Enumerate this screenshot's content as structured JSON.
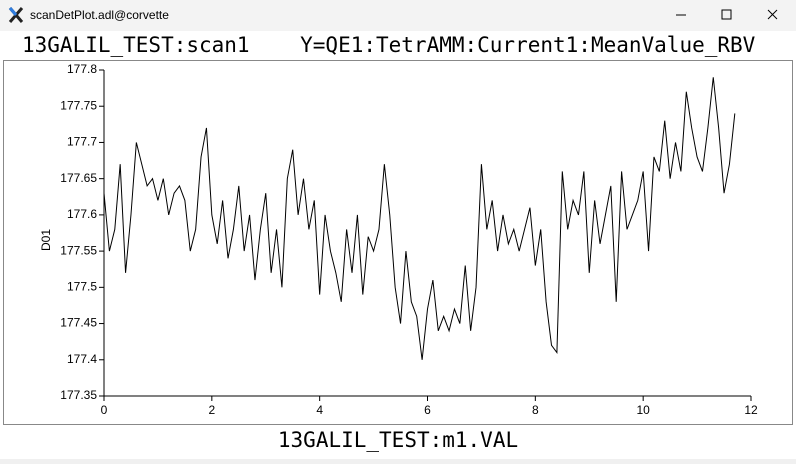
{
  "window_title": "scanDetPlot.adl@corvette",
  "chart_data": {
    "type": "line",
    "title": "13GALIL_TEST:scan1    Y=QE1:TetrAMM:Current1:MeanValue_RBV",
    "x_label": "13GALIL_TEST:m1.VAL",
    "y_label": "D01",
    "xlim": [
      0,
      12
    ],
    "xticks": [
      0,
      2,
      4,
      6,
      8,
      10,
      12
    ],
    "ylim": [
      177.35,
      177.8
    ],
    "yticks": [
      177.35,
      177.4,
      177.45,
      177.5,
      177.55,
      177.6,
      177.65,
      177.7,
      177.75,
      177.8
    ],
    "series": [
      {
        "name": "D01",
        "color": "#000000",
        "x": [
          0,
          0.1,
          0.2,
          0.3,
          0.4,
          0.5,
          0.6,
          0.7,
          0.8,
          0.9,
          1,
          1.1,
          1.2,
          1.3,
          1.4,
          1.5,
          1.6,
          1.7,
          1.8,
          1.9,
          2,
          2.1,
          2.2,
          2.3,
          2.4,
          2.5,
          2.6,
          2.7,
          2.8,
          2.9,
          3,
          3.1,
          3.2,
          3.3,
          3.4,
          3.5,
          3.6,
          3.7,
          3.8,
          3.9,
          4,
          4.1,
          4.2,
          4.3,
          4.4,
          4.5,
          4.6,
          4.7,
          4.8,
          4.9,
          5,
          5.1,
          5.2,
          5.3,
          5.4,
          5.5,
          5.6,
          5.7,
          5.8,
          5.9,
          6,
          6.1,
          6.2,
          6.3,
          6.4,
          6.5,
          6.6,
          6.7,
          6.8,
          6.9,
          7,
          7.1,
          7.2,
          7.3,
          7.4,
          7.5,
          7.6,
          7.7,
          7.8,
          7.9,
          8,
          8.1,
          8.2,
          8.3,
          8.4,
          8.5,
          8.6,
          8.7,
          8.8,
          8.9,
          9,
          9.1,
          9.2,
          9.3,
          9.4,
          9.5,
          9.6,
          9.7,
          9.8,
          9.9,
          10,
          10.1,
          10.2,
          10.3,
          10.4,
          10.5,
          10.6,
          10.7,
          10.8,
          10.9,
          11,
          11.1,
          11.2,
          11.3,
          11.4,
          11.5,
          11.6,
          11.7
        ],
        "values": [
          177.63,
          177.55,
          177.58,
          177.67,
          177.52,
          177.6,
          177.7,
          177.67,
          177.64,
          177.65,
          177.62,
          177.65,
          177.6,
          177.63,
          177.64,
          177.62,
          177.55,
          177.58,
          177.68,
          177.72,
          177.6,
          177.56,
          177.62,
          177.54,
          177.58,
          177.64,
          177.55,
          177.6,
          177.51,
          177.58,
          177.63,
          177.52,
          177.58,
          177.5,
          177.65,
          177.69,
          177.6,
          177.65,
          177.58,
          177.62,
          177.49,
          177.6,
          177.55,
          177.52,
          177.48,
          177.58,
          177.52,
          177.6,
          177.49,
          177.57,
          177.55,
          177.58,
          177.67,
          177.6,
          177.5,
          177.45,
          177.55,
          177.48,
          177.46,
          177.4,
          177.47,
          177.51,
          177.44,
          177.46,
          177.44,
          177.47,
          177.45,
          177.53,
          177.44,
          177.5,
          177.67,
          177.58,
          177.62,
          177.55,
          177.6,
          177.56,
          177.58,
          177.55,
          177.58,
          177.61,
          177.53,
          177.58,
          177.48,
          177.42,
          177.41,
          177.66,
          177.58,
          177.62,
          177.6,
          177.66,
          177.52,
          177.62,
          177.56,
          177.6,
          177.64,
          177.48,
          177.66,
          177.58,
          177.6,
          177.62,
          177.66,
          177.55,
          177.68,
          177.66,
          177.73,
          177.65,
          177.7,
          177.66,
          177.77,
          177.72,
          177.68,
          177.66,
          177.72,
          177.79,
          177.72,
          177.63,
          177.67,
          177.74
        ]
      }
    ]
  }
}
